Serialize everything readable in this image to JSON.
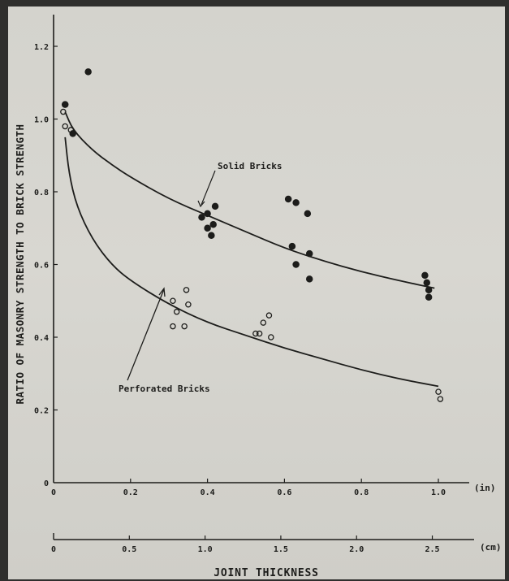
{
  "chart_data": {
    "type": "scatter",
    "ylabel": "RATIO OF MASONRY STRENGTH TO BRICK STRENGTH",
    "xlabel": "JOINT THICKNESS",
    "x_unit": "(in)",
    "x2_unit": "(cm)",
    "xlim": [
      0,
      1.0
    ],
    "ylim": [
      0,
      1.2
    ],
    "x_ticks": [
      "0",
      "0.2",
      "0.4",
      "0.6",
      "0.8",
      "1.0"
    ],
    "y_ticks": [
      "0",
      "0.2",
      "0.4",
      "0.6",
      "0.8",
      "1.0",
      "1.2"
    ],
    "x2_ticks": [
      "0",
      "0.5",
      "1.0",
      "1.5",
      "2.0",
      "2.5"
    ],
    "x2_tick_values_cm": [
      0,
      0.5,
      1.0,
      1.5,
      2.0,
      2.5
    ],
    "annotations": [
      {
        "text": "Solid Bricks",
        "series": "Solid Bricks"
      },
      {
        "text": "Perforated Bricks",
        "series": "Perforated Bricks"
      }
    ],
    "series": [
      {
        "name": "Solid Bricks",
        "marker": "filled-circle",
        "points": [
          [
            0.03,
            1.04
          ],
          [
            0.09,
            1.13
          ],
          [
            0.05,
            0.96
          ],
          [
            0.385,
            0.73
          ],
          [
            0.4,
            0.74
          ],
          [
            0.415,
            0.71
          ],
          [
            0.42,
            0.76
          ],
          [
            0.4,
            0.7
          ],
          [
            0.41,
            0.68
          ],
          [
            0.61,
            0.78
          ],
          [
            0.63,
            0.77
          ],
          [
            0.66,
            0.74
          ],
          [
            0.62,
            0.65
          ],
          [
            0.63,
            0.6
          ],
          [
            0.665,
            0.63
          ],
          [
            0.665,
            0.56
          ],
          [
            0.965,
            0.57
          ],
          [
            0.97,
            0.55
          ],
          [
            0.975,
            0.53
          ],
          [
            0.975,
            0.51
          ]
        ],
        "curve": [
          [
            0.03,
            1.02
          ],
          [
            0.05,
            0.97
          ],
          [
            0.1,
            0.915
          ],
          [
            0.15,
            0.875
          ],
          [
            0.2,
            0.84
          ],
          [
            0.3,
            0.78
          ],
          [
            0.4,
            0.735
          ],
          [
            0.5,
            0.69
          ],
          [
            0.6,
            0.645
          ],
          [
            0.7,
            0.61
          ],
          [
            0.8,
            0.58
          ],
          [
            0.9,
            0.555
          ],
          [
            0.99,
            0.535
          ]
        ]
      },
      {
        "name": "Perforated Bricks",
        "marker": "open-circle",
        "points": [
          [
            0.025,
            1.02
          ],
          [
            0.03,
            0.98
          ],
          [
            0.045,
            0.97
          ],
          [
            0.31,
            0.5
          ],
          [
            0.32,
            0.47
          ],
          [
            0.31,
            0.43
          ],
          [
            0.34,
            0.43
          ],
          [
            0.345,
            0.53
          ],
          [
            0.35,
            0.49
          ],
          [
            0.525,
            0.41
          ],
          [
            0.535,
            0.41
          ],
          [
            0.545,
            0.44
          ],
          [
            0.56,
            0.46
          ],
          [
            0.565,
            0.4
          ],
          [
            1.0,
            0.25
          ],
          [
            1.005,
            0.23
          ]
        ],
        "curve": [
          [
            0.03,
            0.95
          ],
          [
            0.04,
            0.85
          ],
          [
            0.06,
            0.76
          ],
          [
            0.1,
            0.67
          ],
          [
            0.15,
            0.6
          ],
          [
            0.2,
            0.555
          ],
          [
            0.3,
            0.49
          ],
          [
            0.4,
            0.44
          ],
          [
            0.5,
            0.405
          ],
          [
            0.6,
            0.37
          ],
          [
            0.7,
            0.34
          ],
          [
            0.8,
            0.31
          ],
          [
            0.9,
            0.285
          ],
          [
            1.0,
            0.265
          ]
        ]
      }
    ]
  }
}
